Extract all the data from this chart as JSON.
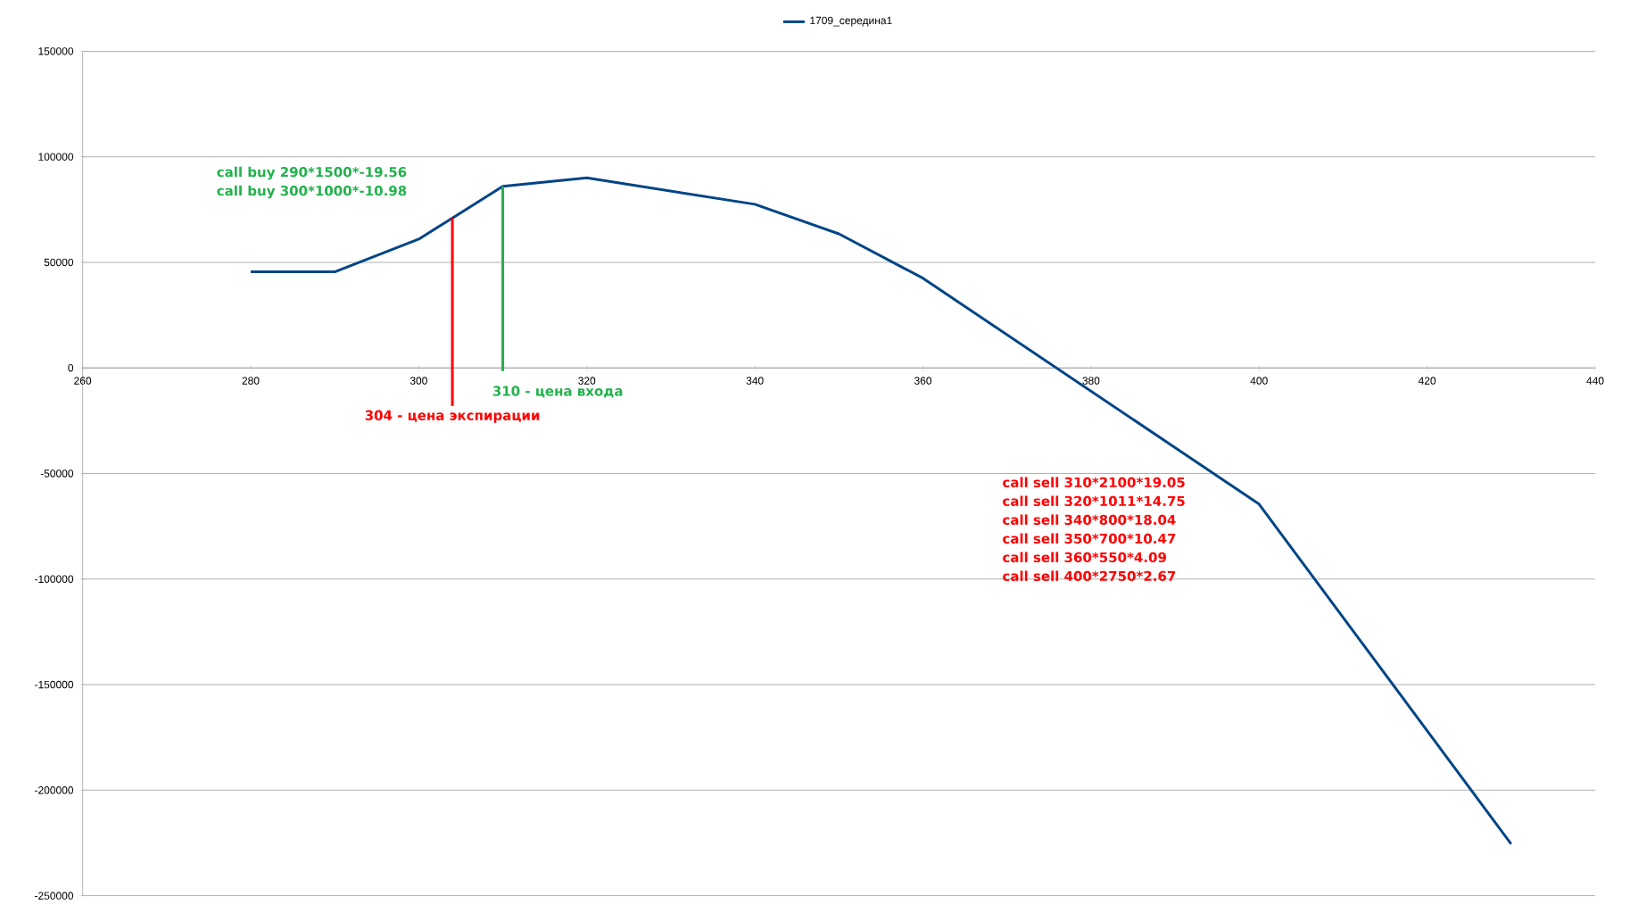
{
  "chart_data": {
    "type": "line",
    "x": [
      280,
      290,
      300,
      310,
      320,
      340,
      350,
      360,
      400,
      430
    ],
    "series": [
      {
        "name": "1709_середина1",
        "color": "#004586",
        "values": [
          45500,
          45500,
          61000,
          86000,
          90000,
          77500,
          63500,
          42500,
          -64500,
          -225500
        ]
      }
    ],
    "xlim": [
      260,
      440
    ],
    "xticks": [
      260,
      280,
      300,
      320,
      340,
      360,
      380,
      400,
      420,
      440
    ],
    "ylim": [
      -250000,
      150000
    ],
    "yticks": [
      -250000,
      -200000,
      -150000,
      -100000,
      -50000,
      0,
      50000,
      100000,
      150000
    ],
    "grid": "y",
    "legend": "top",
    "marker": "none",
    "line_style": "solid",
    "ref_lines": [
      {
        "axis": "x",
        "value": 304,
        "label": "304 - цена экспирации",
        "color": "#ff0000"
      },
      {
        "axis": "x",
        "value": 310,
        "label": "310 - цена входа",
        "color": "#22b14c"
      }
    ],
    "annotations": [
      "call buy 290*1500*-19.56",
      "call buy 300*1000*-10.98",
      "call sell 310*2100*19.05",
      "call sell 320*1011*14.75",
      "call sell 340*800*18.04",
      "call sell 350*700*10.47",
      "call sell 360*550*4.09",
      "call sell 400*2750*2.67"
    ]
  }
}
